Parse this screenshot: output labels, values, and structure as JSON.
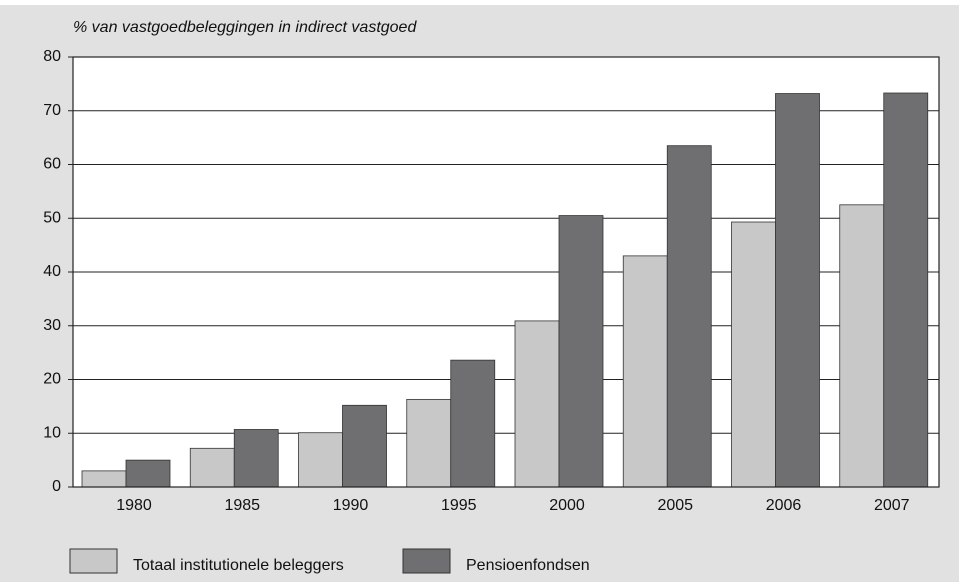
{
  "chart_data": {
    "type": "bar",
    "subtitle": "% van vastgoedbeleggingen in indirect vastgoed",
    "categories": [
      "1980",
      "1985",
      "1990",
      "1995",
      "2000",
      "2005",
      "2006",
      "2007"
    ],
    "series": [
      {
        "name": "Totaal institutionele beleggers",
        "color": "#c8c8c8",
        "values": [
          3,
          7.2,
          10.1,
          16.3,
          30.9,
          43,
          49.3,
          52.5
        ]
      },
      {
        "name": "Pensioenfondsen",
        "color": "#6f6f71",
        "values": [
          5,
          10.7,
          15.2,
          23.6,
          50.5,
          63.5,
          73.2,
          73.3
        ]
      }
    ],
    "ylim": [
      0,
      80
    ],
    "yticks": [
      0,
      10,
      20,
      30,
      40,
      50,
      60,
      70,
      80
    ],
    "grid": true,
    "legend": "bottom"
  }
}
